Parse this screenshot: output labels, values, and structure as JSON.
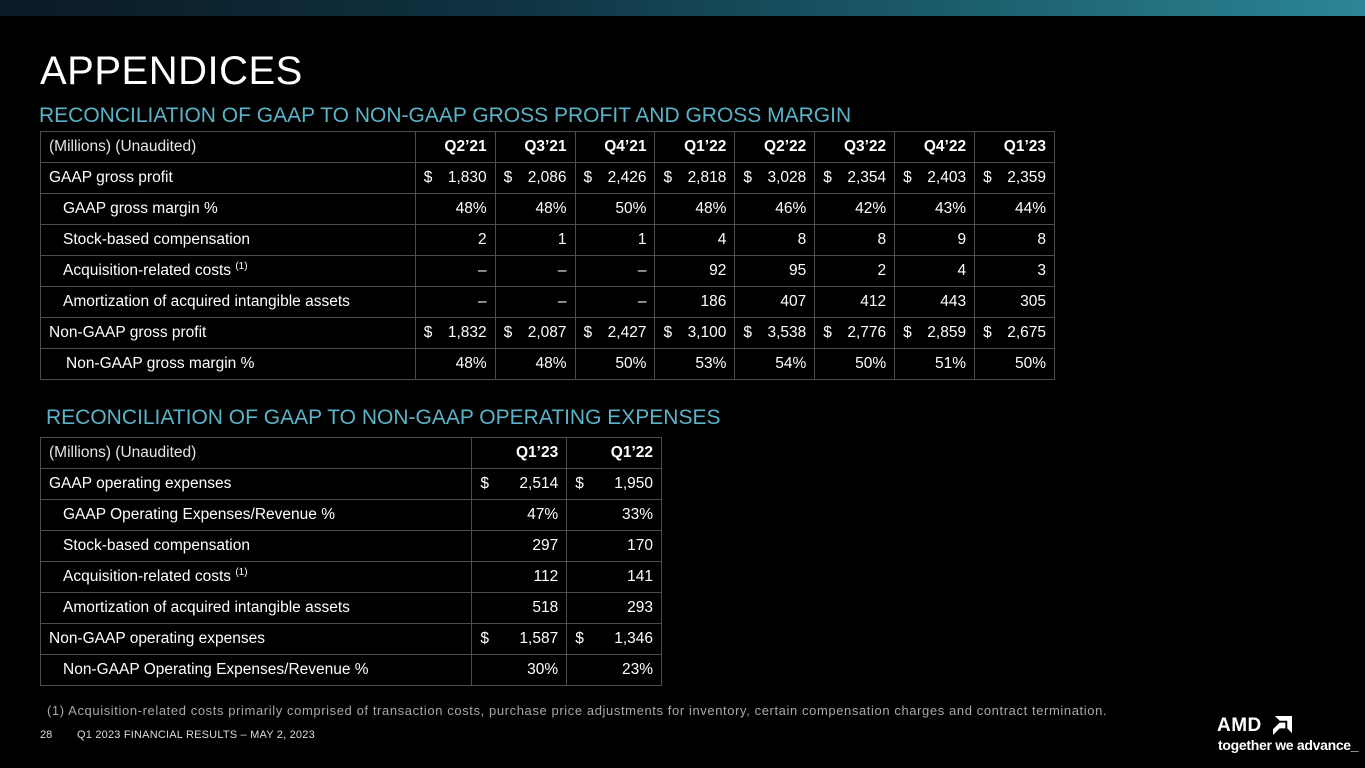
{
  "title": "APPENDICES",
  "gross_profit": {
    "section_title": "RECONCILIATION OF GAAP TO NON-GAAP GROSS PROFIT AND GROSS MARGIN",
    "header_label": "(Millions) (Unaudited)",
    "periods": [
      "Q2’21",
      "Q3’21",
      "Q4’21",
      "Q1’22",
      "Q2’22",
      "Q3’22",
      "Q4’22",
      "Q1’23"
    ],
    "rows": [
      {
        "label": "GAAP gross profit",
        "indent": 0,
        "dollar": true,
        "values": [
          "1,830",
          "2,086",
          "2,426",
          "2,818",
          "3,028",
          "2,354",
          "2,403",
          "2,359"
        ]
      },
      {
        "label": "GAAP gross margin %",
        "indent": 1,
        "values": [
          "48%",
          "48%",
          "50%",
          "48%",
          "46%",
          "42%",
          "43%",
          "44%"
        ]
      },
      {
        "label": "Stock-based compensation",
        "indent": 1,
        "values": [
          "2",
          "1",
          "1",
          "4",
          "8",
          "8",
          "9",
          "8"
        ]
      },
      {
        "label": "Acquisition-related costs",
        "note": "(1)",
        "indent": 1,
        "values": [
          "–",
          "–",
          "–",
          "92",
          "95",
          "2",
          "4",
          "3"
        ]
      },
      {
        "label": "Amortization of acquired intangible assets",
        "indent": 1,
        "values": [
          "–",
          "–",
          "–",
          "186",
          "407",
          "412",
          "443",
          "305"
        ]
      },
      {
        "label": "Non-GAAP gross profit",
        "indent": 0,
        "dollar": true,
        "values": [
          "1,832",
          "2,087",
          "2,427",
          "3,100",
          "3,538",
          "2,776",
          "2,859",
          "2,675"
        ]
      },
      {
        "label": "Non-GAAP gross margin %",
        "indent": 2,
        "values": [
          "48%",
          "48%",
          "50%",
          "53%",
          "54%",
          "50%",
          "51%",
          "50%"
        ]
      }
    ]
  },
  "operating_expenses": {
    "section_title": "RECONCILIATION OF GAAP TO NON-GAAP OPERATING EXPENSES",
    "header_label": "(Millions) (Unaudited)",
    "periods": [
      "Q1’23",
      "Q1’22"
    ],
    "rows": [
      {
        "label": "GAAP operating expenses",
        "indent": 0,
        "dollar": true,
        "values": [
          "2,514",
          "1,950"
        ]
      },
      {
        "label": "GAAP Operating Expenses/Revenue %",
        "indent": 1,
        "values": [
          "47%",
          "33%"
        ]
      },
      {
        "label": "Stock-based compensation",
        "indent": 1,
        "values": [
          "297",
          "170"
        ]
      },
      {
        "label": "Acquisition-related costs",
        "note": "(1)",
        "indent": 1,
        "values": [
          "112",
          "141"
        ]
      },
      {
        "label": "Amortization of acquired intangible assets",
        "indent": 1,
        "values": [
          "518",
          "293"
        ]
      },
      {
        "label": "Non-GAAP operating expenses",
        "indent": 0,
        "dollar": true,
        "values": [
          "1,587",
          "1,346"
        ]
      },
      {
        "label": "Non-GAAP Operating Expenses/Revenue %",
        "indent": 1,
        "values": [
          "30%",
          "23%"
        ]
      }
    ]
  },
  "footnote": "(1) Acquisition-related costs primarily comprised of transaction costs, purchase price adjustments for inventory, certain compensation charges and contract termination.",
  "page_number": "28",
  "footer_text": "Q1 2023 FINANCIAL RESULTS – MAY 2, 2023",
  "logo": {
    "word": "AMD",
    "tagline": "together we advance_",
    "icon": "amd-arrow-icon"
  },
  "colors": {
    "background": "#000000",
    "section_title": "#5ab3c8",
    "table_border": "#4d4d4d"
  }
}
